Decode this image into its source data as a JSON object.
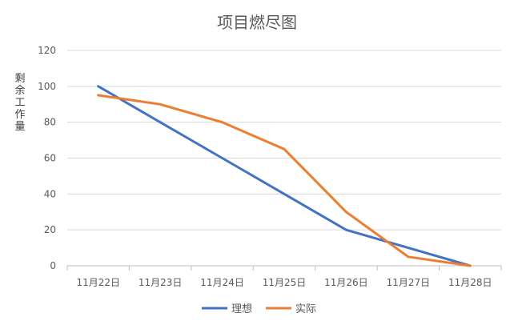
{
  "chart_data": {
    "type": "line",
    "title": "项目燃尽图",
    "ylabel": "剩余工作量",
    "xlabel": "",
    "categories": [
      "11月22日",
      "11月23日",
      "11月24日",
      "11月25日",
      "11月26日",
      "11月27日",
      "11月28日"
    ],
    "ylim": [
      0,
      120
    ],
    "yticks": [
      0,
      20,
      40,
      60,
      80,
      100,
      120
    ],
    "grid": true,
    "legend": "bottom",
    "series": [
      {
        "name": "理想",
        "color": "#4472C4",
        "values": [
          100,
          80,
          60,
          40,
          20,
          10,
          0
        ]
      },
      {
        "name": "实际",
        "color": "#ED7D31",
        "values": [
          95,
          90,
          80,
          65,
          30,
          5,
          0
        ]
      }
    ]
  }
}
